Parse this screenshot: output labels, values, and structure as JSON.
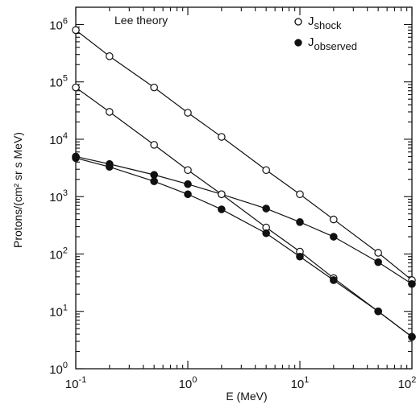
{
  "chart_data": {
    "type": "line",
    "title": "",
    "annotation": "Lee theory",
    "xlabel": "E (MeV)",
    "ylabel": "Protons/(cm² sr s MeV)",
    "xscale": "log",
    "yscale": "log",
    "xlim": [
      0.1,
      100
    ],
    "ylim": [
      1,
      2000000
    ],
    "grid": false,
    "legend_position": "top-right",
    "x_ticks": [
      {
        "base": "10",
        "exp": "-1",
        "value": 0.1
      },
      {
        "base": "10",
        "exp": "0",
        "value": 1
      },
      {
        "base": "10",
        "exp": "1",
        "value": 10
      },
      {
        "base": "10",
        "exp": "2",
        "value": 100
      }
    ],
    "y_ticks": [
      {
        "base": "10",
        "exp": "0",
        "value": 1
      },
      {
        "base": "10",
        "exp": "1",
        "value": 10
      },
      {
        "base": "10",
        "exp": "2",
        "value": 100
      },
      {
        "base": "10",
        "exp": "3",
        "value": 1000
      },
      {
        "base": "10",
        "exp": "4",
        "value": 10000
      },
      {
        "base": "10",
        "exp": "5",
        "value": 100000
      },
      {
        "base": "10",
        "exp": "6",
        "value": 1000000
      }
    ],
    "legend": [
      {
        "symbol": "open-circle",
        "main": "J",
        "sub": "shock"
      },
      {
        "symbol": "filled-circle",
        "main": "J",
        "sub": "observed"
      }
    ],
    "series": [
      {
        "symbol": "open-circle",
        "x": [
          0.1,
          0.2,
          0.5,
          1,
          2,
          5,
          10,
          20,
          50,
          100
        ],
        "y": [
          800000,
          280000,
          80000,
          29000,
          11000,
          2900,
          1100,
          400,
          105,
          35
        ]
      },
      {
        "symbol": "filled-circle",
        "x": [
          0.1,
          0.2,
          0.5,
          1,
          2,
          5,
          10,
          20,
          50,
          100
        ],
        "y": [
          5000,
          3700,
          2400,
          1650,
          1100,
          620,
          360,
          200,
          72,
          30
        ]
      },
      {
        "symbol": "open-circle",
        "x": [
          0.1,
          0.2,
          0.5,
          1,
          2,
          5,
          10,
          20,
          50,
          100
        ],
        "y": [
          80000,
          30000,
          8000,
          2900,
          1100,
          290,
          110,
          38,
          10,
          3.6
        ]
      },
      {
        "symbol": "filled-circle",
        "x": [
          0.1,
          0.2,
          0.5,
          1,
          2,
          5,
          10,
          20,
          50,
          100
        ],
        "y": [
          4700,
          3300,
          1850,
          1100,
          600,
          230,
          90,
          35,
          10,
          3.6
        ]
      }
    ]
  }
}
